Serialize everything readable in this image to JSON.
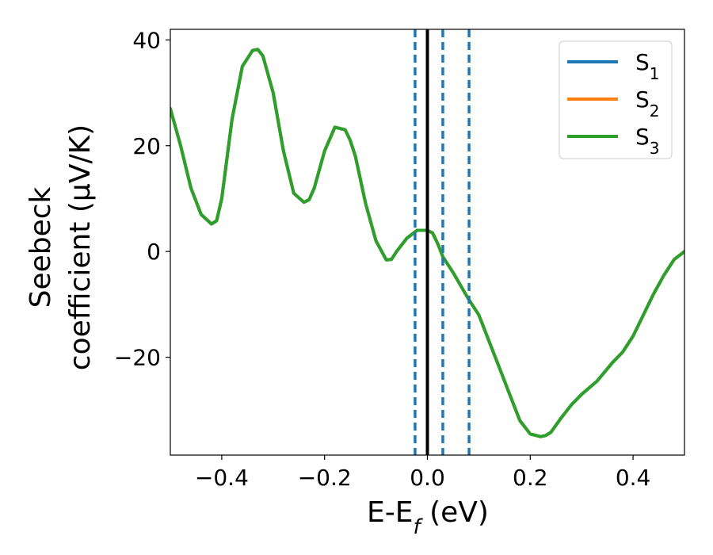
{
  "chart_data": {
    "type": "line",
    "xlabel": "E-E",
    "xlabel_sub": "f",
    "xlabel_unit": " (eV)",
    "ylabel_line1": "Seebeck",
    "ylabel_line2": "coefficient  (μV/K)",
    "xlim": [
      -0.5,
      0.5
    ],
    "ylim": [
      -38.5,
      42
    ],
    "grid": false,
    "legend_placement": "top-right",
    "x_ticks": [
      {
        "value": -0.4,
        "label": "−0.4"
      },
      {
        "value": -0.2,
        "label": "−0.2"
      },
      {
        "value": 0.0,
        "label": "0.0"
      },
      {
        "value": 0.2,
        "label": "0.2"
      },
      {
        "value": 0.4,
        "label": "0.4"
      }
    ],
    "y_ticks": [
      {
        "value": -20,
        "label": "−20"
      },
      {
        "value": 0,
        "label": "0"
      },
      {
        "value": 20,
        "label": "20"
      },
      {
        "value": 40,
        "label": "40"
      }
    ],
    "series": [
      {
        "name": "S",
        "sub": "1",
        "color": "#1f77b4",
        "x": [
          -0.5,
          -0.48,
          -0.46,
          -0.44,
          -0.42,
          -0.41,
          -0.4,
          -0.38,
          -0.36,
          -0.34,
          -0.33,
          -0.32,
          -0.3,
          -0.28,
          -0.26,
          -0.24,
          -0.23,
          -0.22,
          -0.2,
          -0.18,
          -0.16,
          -0.15,
          -0.14,
          -0.12,
          -0.1,
          -0.08,
          -0.07,
          -0.06,
          -0.04,
          -0.02,
          0.0,
          0.01,
          0.02,
          0.03,
          0.05,
          0.08,
          0.1,
          0.12,
          0.14,
          0.16,
          0.18,
          0.2,
          0.22,
          0.23,
          0.24,
          0.26,
          0.28,
          0.3,
          0.33,
          0.36,
          0.38,
          0.4,
          0.42,
          0.44,
          0.46,
          0.48,
          0.5
        ],
        "y": [
          27,
          20,
          12,
          7,
          5.2,
          5.8,
          10,
          25,
          35,
          38,
          38.2,
          37,
          30,
          19,
          11,
          9.3,
          9.8,
          12,
          19,
          23.5,
          23,
          21,
          18,
          9,
          2,
          -1.6,
          -1.5,
          0,
          2.5,
          4,
          4,
          3.5,
          1.5,
          -1,
          -4,
          -9,
          -12,
          -17,
          -22,
          -27,
          -32,
          -34.5,
          -35,
          -34.8,
          -34.2,
          -31.5,
          -29,
          -27,
          -24.5,
          -21,
          -19,
          -16,
          -12,
          -8,
          -4.5,
          -1.5,
          0
        ]
      },
      {
        "name": "S",
        "sub": "2",
        "color": "#ff7f0e",
        "x": [
          -0.5,
          -0.48,
          -0.46,
          -0.44,
          -0.42,
          -0.41,
          -0.4,
          -0.38,
          -0.36,
          -0.34,
          -0.33,
          -0.32,
          -0.3,
          -0.28,
          -0.26,
          -0.24,
          -0.23,
          -0.22,
          -0.2,
          -0.18,
          -0.16,
          -0.15,
          -0.14,
          -0.12,
          -0.1,
          -0.08,
          -0.07,
          -0.06,
          -0.04,
          -0.02,
          0.0,
          0.01,
          0.02,
          0.03,
          0.05,
          0.08,
          0.1,
          0.12,
          0.14,
          0.16,
          0.18,
          0.2,
          0.22,
          0.23,
          0.24,
          0.26,
          0.28,
          0.3,
          0.33,
          0.36,
          0.38,
          0.4,
          0.42,
          0.44,
          0.46,
          0.48,
          0.5
        ],
        "y": [
          27,
          20,
          12,
          7,
          5.2,
          5.8,
          10,
          25,
          35,
          38,
          38.2,
          37,
          30,
          19,
          11,
          9.3,
          9.8,
          12,
          19,
          23.5,
          23,
          21,
          18,
          9,
          2,
          -1.6,
          -1.5,
          0,
          2.5,
          4,
          4,
          3.5,
          1.5,
          -1,
          -4,
          -9,
          -12,
          -17,
          -22,
          -27,
          -32,
          -34.5,
          -35,
          -34.8,
          -34.2,
          -31.5,
          -29,
          -27,
          -24.5,
          -21,
          -19,
          -16,
          -12,
          -8,
          -4.5,
          -1.5,
          0
        ]
      },
      {
        "name": "S",
        "sub": "3",
        "color": "#2ca02c",
        "x": [
          -0.5,
          -0.48,
          -0.46,
          -0.44,
          -0.42,
          -0.41,
          -0.4,
          -0.38,
          -0.36,
          -0.34,
          -0.33,
          -0.32,
          -0.3,
          -0.28,
          -0.26,
          -0.24,
          -0.23,
          -0.22,
          -0.2,
          -0.18,
          -0.16,
          -0.15,
          -0.14,
          -0.12,
          -0.1,
          -0.08,
          -0.07,
          -0.06,
          -0.04,
          -0.02,
          0.0,
          0.01,
          0.02,
          0.03,
          0.05,
          0.08,
          0.1,
          0.12,
          0.14,
          0.16,
          0.18,
          0.2,
          0.22,
          0.23,
          0.24,
          0.26,
          0.28,
          0.3,
          0.33,
          0.36,
          0.38,
          0.4,
          0.42,
          0.44,
          0.46,
          0.48,
          0.5
        ],
        "y": [
          27,
          20,
          12,
          7,
          5.2,
          5.8,
          10,
          25,
          35,
          38,
          38.2,
          37,
          30,
          19,
          11,
          9.3,
          9.8,
          12,
          19,
          23.5,
          23,
          21,
          18,
          9,
          2,
          -1.6,
          -1.5,
          0,
          2.5,
          4,
          4,
          3.5,
          1.5,
          -1,
          -4,
          -9,
          -12,
          -17,
          -22,
          -27,
          -32,
          -34.5,
          -35,
          -34.8,
          -34.2,
          -31.5,
          -29,
          -27,
          -24.5,
          -21,
          -19,
          -16,
          -12,
          -8,
          -4.5,
          -1.5,
          0
        ]
      }
    ],
    "vertical_lines": [
      {
        "x": 0.0,
        "style": "solid",
        "color": "#000000"
      },
      {
        "x": -0.024,
        "style": "dashed",
        "color": "#1f77b4"
      },
      {
        "x": 0.03,
        "style": "dashed",
        "color": "#1f77b4"
      },
      {
        "x": 0.081,
        "style": "dashed",
        "color": "#1f77b4"
      }
    ]
  }
}
